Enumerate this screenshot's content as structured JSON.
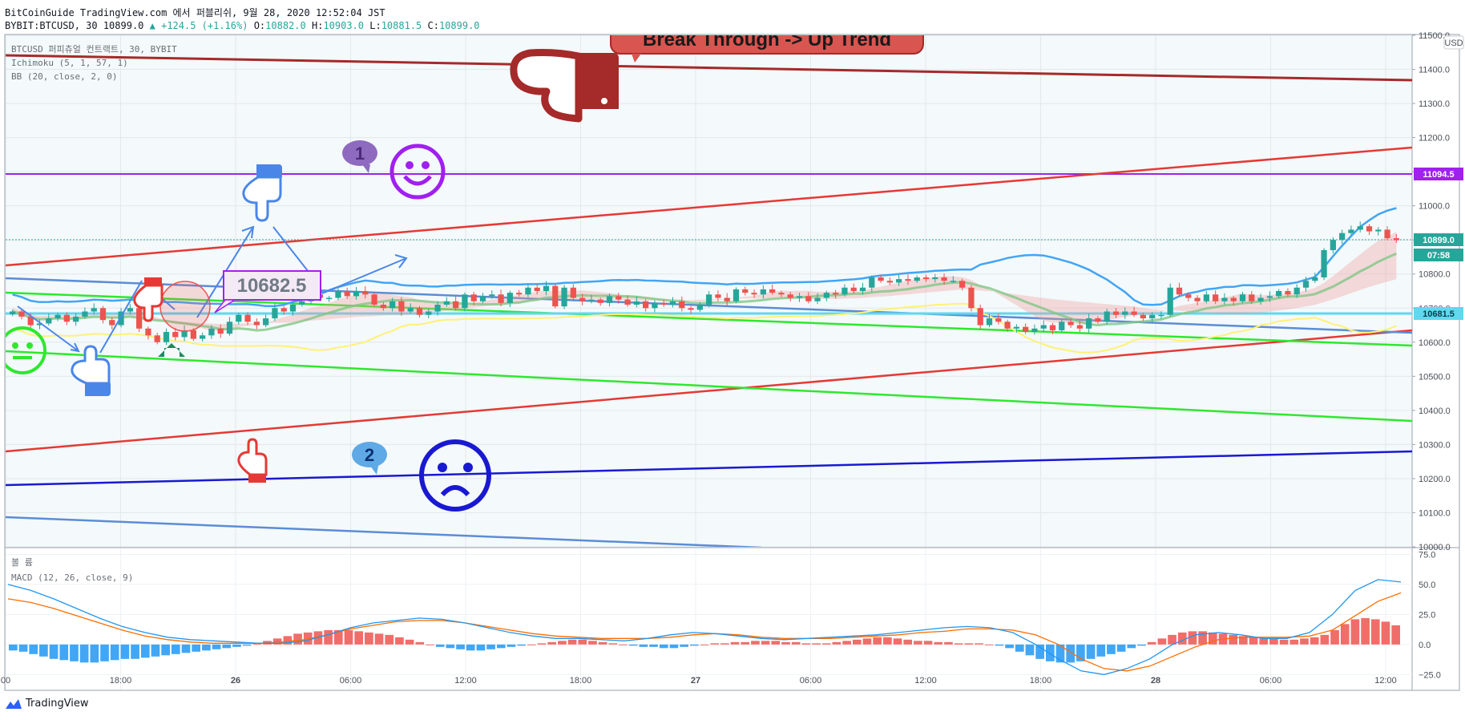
{
  "header": {
    "publish_line": "BitCoinGuide TradingView.com 에서 퍼블리쉬, 9월 28, 2020 12:52:04 JST",
    "symbol": "BYBIT:BTCUSD, 30",
    "last": "10899.0",
    "change": "▲ +124.5 (+1.16%)",
    "ohlc_o_label": "O:",
    "ohlc_o": "10882.0",
    "ohlc_h_label": "H:",
    "ohlc_h": "10903.0",
    "ohlc_l_label": "L:",
    "ohlc_l": "10881.5",
    "ohlc_c_label": "C:",
    "ohlc_c": "10899.0"
  },
  "legend": {
    "series": "BTCUSD 퍼피츄얼 컨트랙트, 30, BYBIT",
    "ichimoku": "Ichimoku (5, 1, 57, 1)",
    "bb": "BB (20, close, 2, 0)",
    "macd_title": "볼 륨",
    "macd": "MACD (12, 26, close, 9)"
  },
  "annotations": {
    "banner": "Break Through -> Up Trend",
    "bubble_1": "1",
    "bubble_2": "2",
    "price_box": "10682.5"
  },
  "price_axis": {
    "currency": "USD",
    "tag_purple": "11094.5",
    "tag_last": "10899.0",
    "tag_timer": "07:58",
    "tag_cyan": "10681.5"
  },
  "footer": {
    "brand": "TradingView"
  },
  "colors": {
    "up": "#26a69a",
    "down": "#ef5350",
    "bb": "#42a5f5",
    "ichimoku_base": "#81c784",
    "ichimoku_lag": "#fff176",
    "trend_red": "#e53935",
    "trend_green": "#2ee82e",
    "trend_blue": "#1919d2",
    "resistance": "#a52a2a",
    "level_purple": "#a020f0",
    "macd_line": "#2196f3",
    "signal_line": "#ff6d00"
  },
  "chart_data": [
    {
      "type": "candlestick",
      "title": "BTCUSD 퍼피츄얼 컨트랙트, 30, BYBIT",
      "ylim": [
        10000,
        11500
      ],
      "y_ticks": [
        10000,
        10100,
        10200,
        10300,
        10400,
        10500,
        10600,
        10700,
        10800,
        10900,
        11000,
        11100,
        11200,
        11300,
        11400,
        11500
      ],
      "y_tick_labels": [
        "10000.0",
        "10100.0",
        "10200.0",
        "10300.0",
        "10400.0",
        "10500.0",
        "10600.0",
        "10700.0",
        "10800.0",
        "10900.0",
        "11000.0",
        "11100.0",
        "11200.0",
        "11300.0",
        "11400.0",
        "11500.0"
      ],
      "x_tick_labels": [
        "00",
        "18:00",
        "26",
        "06:00",
        "12:00",
        "18:00",
        "27",
        "06:00",
        "12:00",
        "18:00",
        "28",
        "06:00",
        "12:00"
      ],
      "closes": [
        10690,
        10675,
        10650,
        10655,
        10670,
        10680,
        10660,
        10675,
        10690,
        10700,
        10665,
        10650,
        10690,
        10700,
        10640,
        10620,
        10600,
        10630,
        10615,
        10635,
        10610,
        10620,
        10640,
        10625,
        10660,
        10680,
        10660,
        10650,
        10670,
        10700,
        10690,
        10710,
        10720,
        10740,
        10730,
        10730,
        10750,
        10735,
        10750,
        10740,
        10710,
        10700,
        10720,
        10690,
        10700,
        10680,
        10690,
        10710,
        10720,
        10700,
        10740,
        10720,
        10735,
        10740,
        10715,
        10745,
        10740,
        10760,
        10750,
        10765,
        10705,
        10760,
        10730,
        10720,
        10725,
        10715,
        10735,
        10725,
        10710,
        10720,
        10700,
        10715,
        10710,
        10720,
        10700,
        10695,
        10710,
        10740,
        10730,
        10720,
        10755,
        10745,
        10740,
        10755,
        10745,
        10740,
        10730,
        10735,
        10720,
        10730,
        10745,
        10740,
        10760,
        10750,
        10760,
        10790,
        10780,
        10775,
        10785,
        10780,
        10790,
        10785,
        10790,
        10780,
        10780,
        10760,
        10700,
        10650,
        10670,
        10660,
        10640,
        10645,
        10630,
        10640,
        10650,
        10635,
        10660,
        10650,
        10640,
        10670,
        10660,
        10690,
        10680,
        10690,
        10680,
        10670,
        10680,
        10680,
        10760,
        10740,
        10730,
        10720,
        10740,
        10720,
        10730,
        10720,
        10740,
        10720,
        10730,
        10735,
        10750,
        10740,
        10760,
        10780,
        10790,
        10870,
        10900,
        10920,
        10930,
        10940,
        10925,
        10930,
        10905,
        10899
      ]
    },
    {
      "type": "bar",
      "title": "MACD (12, 26, close, 9)",
      "ylim": [
        -37.5,
        80
      ],
      "y_ticks": [
        -25,
        0,
        25,
        50,
        75
      ],
      "y_tick_labels": [
        "−25.0",
        "0.0",
        "25.0",
        "50.0",
        "75.0"
      ],
      "histogram": [
        -5,
        -6,
        -8,
        -10,
        -12,
        -13,
        -14,
        -15,
        -15,
        -14,
        -13,
        -12,
        -12,
        -11,
        -10,
        -9,
        -8,
        -7,
        -6,
        -5,
        -4,
        -3,
        -2,
        -1,
        1,
        3,
        5,
        7,
        9,
        10,
        11,
        12,
        12,
        12,
        11,
        10,
        9,
        8,
        6,
        4,
        2,
        0,
        -2,
        -3,
        -4,
        -5,
        -5,
        -4,
        -3,
        -2,
        -1,
        0,
        1,
        2,
        3,
        4,
        4,
        3,
        2,
        1,
        0,
        -1,
        -2,
        -2,
        -3,
        -3,
        -2,
        -1,
        0,
        1,
        1,
        2,
        2,
        3,
        3,
        3,
        2,
        2,
        1,
        1,
        1,
        2,
        3,
        4,
        5,
        6,
        6,
        5,
        4,
        3,
        3,
        2,
        2,
        1,
        1,
        1,
        0,
        -1,
        -3,
        -6,
        -9,
        -12,
        -14,
        -15,
        -15,
        -14,
        -12,
        -10,
        -8,
        -6,
        -3,
        -1,
        2,
        5,
        8,
        10,
        11,
        11,
        10,
        9,
        8,
        7,
        6,
        5,
        5,
        4,
        4,
        5,
        6,
        8,
        12,
        17,
        21,
        22,
        21,
        19,
        16
      ],
      "macd_line": [
        50,
        45,
        38,
        30,
        22,
        15,
        10,
        6,
        4,
        3,
        2,
        1,
        1,
        3,
        8,
        14,
        18,
        20,
        22,
        21,
        18,
        14,
        10,
        7,
        5,
        5,
        4,
        3,
        5,
        8,
        10,
        9,
        7,
        5,
        4,
        5,
        6,
        7,
        8,
        10,
        12,
        14,
        15,
        14,
        10,
        0,
        -12,
        -22,
        -25,
        -20,
        -12,
        0,
        8,
        10,
        8,
        5,
        5,
        10,
        25,
        45,
        54,
        52
      ],
      "signal_line": [
        38,
        35,
        30,
        24,
        18,
        12,
        7,
        4,
        2,
        1,
        1,
        1,
        2,
        4,
        8,
        13,
        16,
        19,
        20,
        20,
        18,
        15,
        12,
        9,
        7,
        6,
        5,
        5,
        5,
        6,
        8,
        9,
        8,
        6,
        5,
        5,
        5,
        6,
        7,
        8,
        10,
        11,
        13,
        13,
        12,
        8,
        0,
        -12,
        -20,
        -22,
        -18,
        -10,
        -2,
        4,
        6,
        6,
        6,
        7,
        12,
        24,
        36,
        43
      ]
    }
  ]
}
